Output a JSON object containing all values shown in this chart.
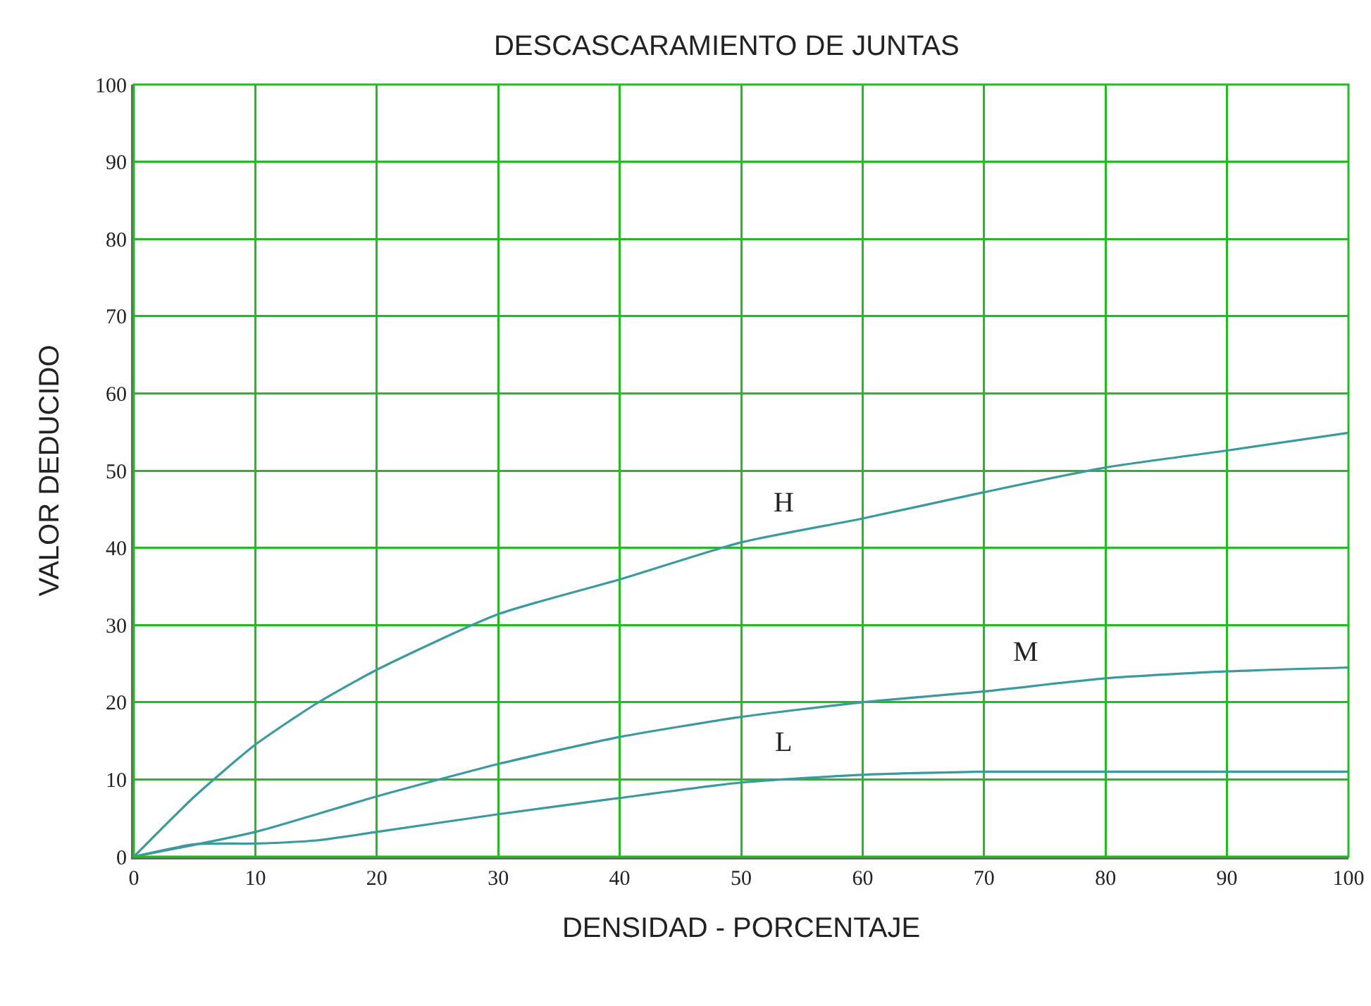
{
  "chart_data": {
    "type": "line",
    "title": "DESCASCARAMIENTO DE JUNTAS",
    "xlabel": "DENSIDAD - PORCENTAJE",
    "ylabel": "VALOR DEDUCIDO",
    "xlim": [
      0,
      100
    ],
    "xticks": [
      0,
      10,
      20,
      30,
      40,
      50,
      60,
      70,
      80,
      90,
      100
    ],
    "ylim": [
      0,
      100
    ],
    "yticks": [
      0,
      10,
      20,
      30,
      40,
      50,
      60,
      70,
      80,
      90,
      100
    ],
    "grid": true,
    "legend": false,
    "marker": "none",
    "line_style": "solid",
    "series": [
      {
        "name": "H",
        "color": "#3a9a9f",
        "x": [
          0,
          5,
          10,
          15,
          20,
          30,
          40,
          50,
          60,
          70,
          80,
          90,
          100
        ],
        "values": [
          0,
          7.8,
          14.5,
          19.8,
          24.2,
          31.4,
          35.9,
          40.7,
          43.8,
          47.2,
          50.4,
          52.6,
          54.9
        ]
      },
      {
        "name": "M",
        "color": "#3a9a9f",
        "x": [
          0,
          10,
          20,
          30,
          40,
          50,
          60,
          70,
          80,
          90,
          100
        ],
        "values": [
          0,
          3.2,
          7.8,
          12,
          15.5,
          18.1,
          20,
          21.4,
          23.1,
          24,
          24.5
        ]
      },
      {
        "name": "L",
        "color": "#3a9a9f",
        "x": [
          0,
          5,
          10,
          15,
          20,
          30,
          40,
          50,
          60,
          70,
          80,
          90,
          100
        ],
        "values": [
          0,
          1.6,
          1.7,
          2.1,
          3.2,
          5.5,
          7.6,
          9.6,
          10.6,
          11,
          11,
          11,
          11
        ]
      }
    ]
  }
}
